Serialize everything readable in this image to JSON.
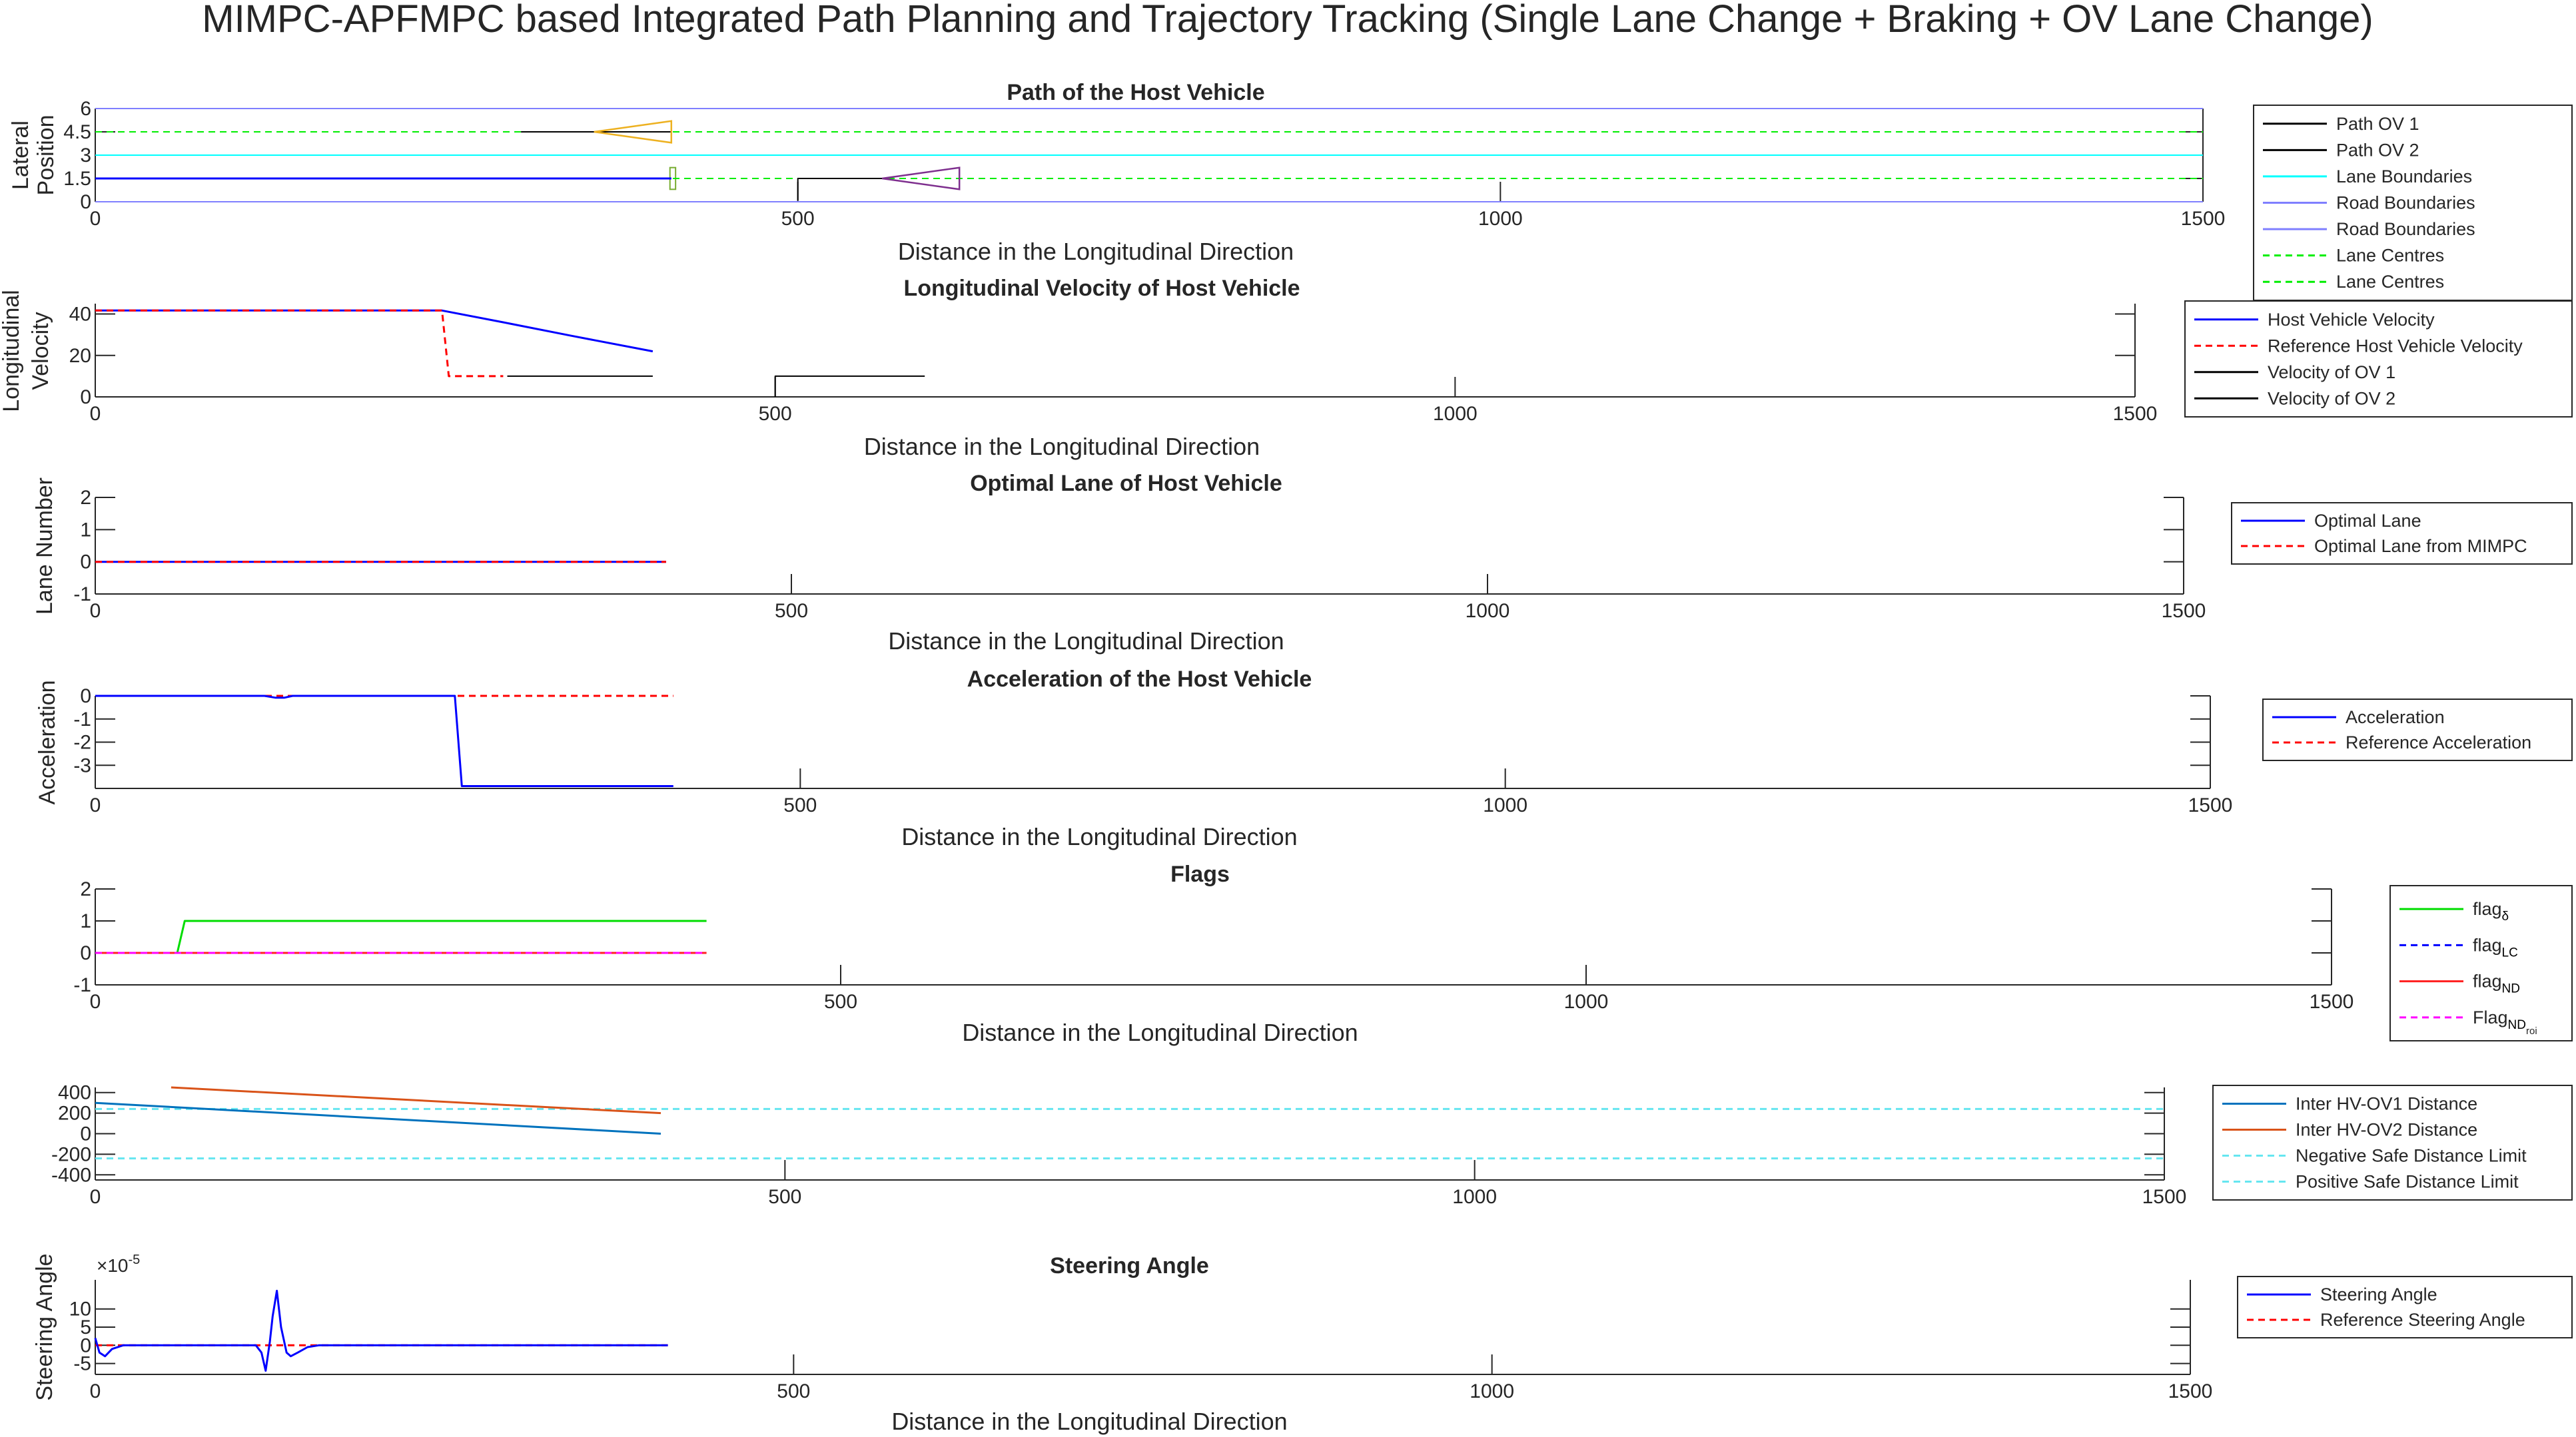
{
  "figure": {
    "title": "MIMPC-APFMPC based Integrated Path Planning and Trajectory Tracking (Single Lane Change + Braking + OV Lane Change)"
  },
  "colors": {
    "blue": "#0000ff",
    "red_dashed": "#ff0000",
    "black": "#000000",
    "cyan": "#00ffff",
    "road_blue": "#7f7fff",
    "green_dashed": "#00ee00",
    "flag_green": "#00dd00",
    "flag_red": "#ff2020",
    "magenta": "#ff00ff",
    "matlab_blue": "#0072bd",
    "matlab_orange": "#d95319",
    "cyan_dashed": "#66e6f0",
    "ov1_box": "#edb120",
    "ov2_box": "#7e2f8e",
    "hv_box": "#77ac30"
  },
  "chart_data": [
    {
      "id": "path",
      "type": "line",
      "title": "Path of the Host Vehicle",
      "xlabel": "Distance in the Longitudinal Direction",
      "ylabel_lines": [
        "Lateral",
        "Position"
      ],
      "xlim": [
        0,
        1500
      ],
      "ylim": [
        0,
        6
      ],
      "xticks": [
        0,
        500,
        1000,
        1500
      ],
      "yticks": [
        0,
        1.5,
        3,
        4.5,
        6
      ],
      "ytick_labels": [
        "0",
        "1.5",
        "3",
        "4.5",
        "6"
      ],
      "legend": [
        {
          "label": "Path OV 1",
          "color": "#000000",
          "dash": false
        },
        {
          "label": "Path OV 2",
          "color": "#000000",
          "dash": false
        },
        {
          "label": "Lane Boundaries",
          "color": "#00ffff",
          "dash": false
        },
        {
          "label": "Road Boundaries",
          "color": "#7f7fff",
          "dash": false
        },
        {
          "label": "Road Boundaries",
          "color": "#7f7fff",
          "dash": false
        },
        {
          "label": "Lane Centres",
          "color": "#00ee00",
          "dash": true
        },
        {
          "label": "Lane Centres",
          "color": "#00ee00",
          "dash": true
        }
      ],
      "series": [
        {
          "name": "Road Boundaries",
          "color": "#7f7fff",
          "dash": false,
          "width": 2,
          "x": [
            0,
            1500
          ],
          "y": [
            6,
            6
          ]
        },
        {
          "name": "Road Boundaries",
          "color": "#7f7fff",
          "dash": false,
          "width": 2,
          "x": [
            0,
            1500
          ],
          "y": [
            0,
            0
          ]
        },
        {
          "name": "Lane Boundaries",
          "color": "#00ffff",
          "dash": false,
          "width": 2,
          "x": [
            0,
            1500
          ],
          "y": [
            3,
            3
          ]
        },
        {
          "name": "Lane Centres",
          "color": "#00ee00",
          "dash": true,
          "width": 2,
          "x": [
            0,
            1500
          ],
          "y": [
            4.5,
            4.5
          ]
        },
        {
          "name": "Lane Centres",
          "color": "#00ee00",
          "dash": true,
          "width": 2,
          "x": [
            0,
            1500
          ],
          "y": [
            1.5,
            1.5
          ]
        },
        {
          "name": "Host Vehicle Path",
          "color": "#0000ff",
          "dash": false,
          "width": 3,
          "x": [
            0,
            410
          ],
          "y": [
            1.5,
            1.5
          ]
        },
        {
          "name": "Path OV 1",
          "color": "#000000",
          "dash": false,
          "width": 2,
          "x": [
            303,
            410
          ],
          "y": [
            4.5,
            4.5
          ]
        },
        {
          "name": "Path OV 2",
          "color": "#000000",
          "dash": false,
          "width": 2,
          "x": [
            500,
            500,
            560
          ],
          "y": [
            0.1,
            1.5,
            1.5
          ]
        }
      ],
      "triangles": [
        {
          "color": "#edb120",
          "x": [
            410,
            355,
            410
          ],
          "y": [
            5.2,
            4.5,
            3.8
          ]
        },
        {
          "color": "#7e2f8e",
          "x": [
            615,
            560,
            615
          ],
          "y": [
            2.2,
            1.5,
            0.8
          ]
        }
      ],
      "rects": [
        {
          "color": "#77ac30",
          "x": [
            409,
            413
          ],
          "y": [
            0.8,
            2.2
          ]
        }
      ]
    },
    {
      "id": "velocity",
      "type": "line",
      "title": "Longitudinal Velocity of Host Vehicle",
      "xlabel": "Distance in the Longitudinal Direction",
      "ylabel_lines": [
        "Longitudinal",
        "Velocity"
      ],
      "xlim": [
        0,
        1500
      ],
      "ylim": [
        0,
        45
      ],
      "xticks": [
        0,
        500,
        1000,
        1500
      ],
      "yticks": [
        0,
        20,
        40
      ],
      "ytick_labels": [
        "0",
        "20",
        "40"
      ],
      "legend": [
        {
          "label": "Host Vehicle Velocity",
          "color": "#0000ff",
          "dash": false
        },
        {
          "label": "Reference Host Vehicle Velocity",
          "color": "#ff0000",
          "dash": true
        },
        {
          "label": "Velocity of OV 1",
          "color": "#000000",
          "dash": false
        },
        {
          "label": "Velocity of OV 2",
          "color": "#000000",
          "dash": false
        }
      ],
      "series": [
        {
          "name": "Host Vehicle Velocity",
          "color": "#0000ff",
          "dash": false,
          "width": 3,
          "x": [
            0,
            255,
            300,
            350,
            410
          ],
          "y": [
            41.7,
            41.7,
            36,
            29.5,
            22
          ]
        },
        {
          "name": "Reference Host Vehicle Velocity",
          "color": "#ff0000",
          "dash": true,
          "width": 3,
          "x": [
            0,
            255,
            260,
            300
          ],
          "y": [
            41.7,
            41.7,
            10,
            10
          ]
        },
        {
          "name": "Velocity of OV 1",
          "color": "#000000",
          "dash": false,
          "width": 2,
          "x": [
            303,
            410
          ],
          "y": [
            10,
            10
          ]
        },
        {
          "name": "Velocity of OV 2",
          "color": "#000000",
          "dash": false,
          "width": 2,
          "x": [
            500,
            500,
            610
          ],
          "y": [
            0,
            10,
            10
          ]
        }
      ]
    },
    {
      "id": "lane",
      "type": "line",
      "title": "Optimal Lane of Host Vehicle",
      "xlabel": "Distance in the Longitudinal Direction",
      "ylabel_lines": [
        "Lane Number"
      ],
      "xlim": [
        0,
        1500
      ],
      "ylim": [
        -1,
        2
      ],
      "xticks": [
        0,
        500,
        1000,
        1500
      ],
      "yticks": [
        -1,
        0,
        1,
        2
      ],
      "ytick_labels": [
        "-1",
        "0",
        "1",
        "2"
      ],
      "legend": [
        {
          "label": "Optimal Lane",
          "color": "#0000ff",
          "dash": false
        },
        {
          "label": "Optimal Lane from MIMPC",
          "color": "#ff0000",
          "dash": true
        }
      ],
      "series": [
        {
          "name": "Optimal Lane",
          "color": "#0000ff",
          "dash": false,
          "width": 3,
          "x": [
            0,
            410
          ],
          "y": [
            0,
            0
          ]
        },
        {
          "name": "Optimal Lane from MIMPC",
          "color": "#ff0000",
          "dash": true,
          "width": 3,
          "x": [
            0,
            410
          ],
          "y": [
            0,
            0
          ]
        }
      ]
    },
    {
      "id": "accel",
      "type": "line",
      "title": "Acceleration of the Host Vehicle",
      "xlabel": "Distance in the Longitudinal Direction",
      "ylabel_lines": [
        "Acceleration"
      ],
      "xlim": [
        0,
        1500
      ],
      "ylim": [
        -4,
        0
      ],
      "xticks": [
        0,
        500,
        1000,
        1500
      ],
      "yticks": [
        -3,
        -2,
        -1,
        0
      ],
      "ytick_labels": [
        "-3",
        "-2",
        "-1",
        "0"
      ],
      "legend": [
        {
          "label": "Acceleration",
          "color": "#0000ff",
          "dash": false
        },
        {
          "label": "Reference Acceleration",
          "color": "#ff0000",
          "dash": true
        }
      ],
      "series": [
        {
          "name": "Reference Acceleration",
          "color": "#ff0000",
          "dash": true,
          "width": 3,
          "x": [
            0,
            410
          ],
          "y": [
            0,
            0
          ]
        },
        {
          "name": "Acceleration",
          "color": "#0000ff",
          "dash": false,
          "width": 3,
          "x": [
            0,
            120,
            128,
            134,
            140,
            255,
            260,
            410
          ],
          "y": [
            0,
            0,
            -0.08,
            -0.08,
            0,
            0,
            -3.9,
            -3.9
          ]
        }
      ]
    },
    {
      "id": "flags",
      "type": "line",
      "title": "Flags",
      "xlabel": "Distance in the Longitudinal Direction",
      "ylabel_lines": [],
      "xlim": [
        0,
        1500
      ],
      "ylim": [
        -1,
        2
      ],
      "xticks": [
        0,
        500,
        1000,
        1500
      ],
      "yticks": [
        -1,
        0,
        1,
        2
      ],
      "ytick_labels": [
        "-1",
        "0",
        "1",
        "2"
      ],
      "legend": [
        {
          "label": "flag",
          "sub": "δ",
          "color": "#00dd00",
          "dash": false
        },
        {
          "label": "flag",
          "sub": "LC",
          "color": "#0000ff",
          "dash": true
        },
        {
          "label": "flag",
          "sub": "ND",
          "color": "#ff2020",
          "dash": false
        },
        {
          "label": "Flag",
          "sub": "ND",
          "sub2": "roi",
          "color": "#ff00ff",
          "dash": true
        }
      ],
      "series": [
        {
          "name": "flag delta",
          "color": "#00dd00",
          "dash": false,
          "width": 3,
          "x": [
            0,
            55,
            60,
            410
          ],
          "y": [
            0,
            0,
            1,
            1
          ]
        },
        {
          "name": "flag LC",
          "color": "#0000ff",
          "dash": true,
          "width": 3,
          "x": [
            0,
            410
          ],
          "y": [
            0,
            0
          ]
        },
        {
          "name": "flag ND",
          "color": "#ff2020",
          "dash": false,
          "width": 3,
          "x": [
            0,
            410
          ],
          "y": [
            0,
            0
          ]
        },
        {
          "name": "Flag ND roi",
          "color": "#ff00ff",
          "dash": true,
          "width": 3,
          "x": [
            0,
            410
          ],
          "y": [
            0,
            0
          ]
        }
      ]
    },
    {
      "id": "distance",
      "type": "line",
      "title": "",
      "xlabel": "",
      "ylabel_lines": [],
      "xlim": [
        0,
        1500
      ],
      "ylim": [
        -450,
        450
      ],
      "xticks": [
        0,
        500,
        1000,
        1500
      ],
      "yticks": [
        -400,
        -200,
        0,
        200,
        400
      ],
      "ytick_labels": [
        "-400",
        "-200",
        "0",
        "200",
        "400"
      ],
      "legend": [
        {
          "label": "Inter HV-OV1 Distance",
          "color": "#0072bd",
          "dash": false
        },
        {
          "label": "Inter HV-OV2 Distance",
          "color": "#d95319",
          "dash": false
        },
        {
          "label": "Negative Safe Distance Limit",
          "color": "#66e6f0",
          "dash": true
        },
        {
          "label": "Positive Safe Distance Limit",
          "color": "#66e6f0",
          "dash": true
        }
      ],
      "series": [
        {
          "name": "Negative Safe Distance Limit",
          "color": "#66e6f0",
          "dash": true,
          "width": 3,
          "x": [
            0,
            1500
          ],
          "y": [
            -240,
            -240
          ]
        },
        {
          "name": "Positive Safe Distance Limit",
          "color": "#66e6f0",
          "dash": true,
          "width": 3,
          "x": [
            0,
            1500
          ],
          "y": [
            240,
            240
          ]
        },
        {
          "name": "Inter HV-OV1 Distance",
          "color": "#0072bd",
          "dash": false,
          "width": 3,
          "x": [
            0,
            410
          ],
          "y": [
            300,
            0
          ]
        },
        {
          "name": "Inter HV-OV2 Distance",
          "color": "#d95319",
          "dash": false,
          "width": 3,
          "x": [
            55,
            410
          ],
          "y": [
            450,
            200
          ]
        }
      ]
    },
    {
      "id": "steering",
      "type": "line",
      "title": "Steering Angle",
      "xlabel": "Distance in the Longitudinal Direction",
      "ylabel_lines": [
        "Steering Angle"
      ],
      "exponent_label": "×10",
      "exponent_power": "-5",
      "xlim": [
        0,
        1500
      ],
      "ylim": [
        -8,
        18
      ],
      "xticks": [
        0,
        500,
        1000,
        1500
      ],
      "yticks": [
        -5,
        0,
        5,
        10
      ],
      "ytick_labels": [
        "-5",
        "0",
        "5",
        "10"
      ],
      "legend": [
        {
          "label": "Steering Angle",
          "color": "#0000ff",
          "dash": false
        },
        {
          "label": "Reference Steering Angle",
          "color": "#ff0000",
          "dash": true
        }
      ],
      "series": [
        {
          "name": "Reference Steering Angle",
          "color": "#ff0000",
          "dash": true,
          "width": 3,
          "x": [
            0,
            410
          ],
          "y": [
            0,
            0
          ]
        },
        {
          "name": "Steering Angle",
          "color": "#0000ff",
          "dash": false,
          "width": 3,
          "x": [
            0,
            3,
            7,
            12,
            20,
            115,
            119,
            122,
            125,
            127,
            130,
            133,
            137,
            140,
            145,
            152,
            160,
            410
          ],
          "y": [
            2,
            -2,
            -3,
            -1,
            0,
            0,
            -2,
            -7,
            1,
            8,
            15,
            5,
            -2,
            -3,
            -2,
            -0.5,
            0,
            0
          ]
        }
      ]
    }
  ]
}
